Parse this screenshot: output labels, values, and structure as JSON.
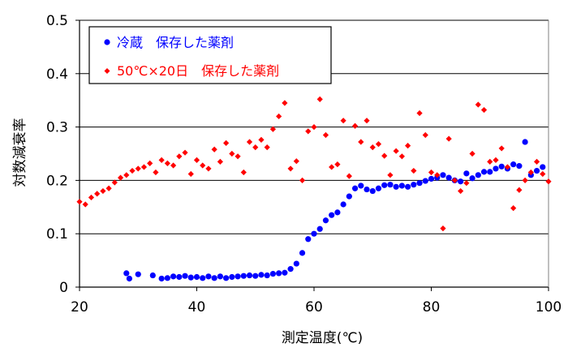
{
  "chart_data": {
    "type": "scatter",
    "xlabel": "測定温度(℃)",
    "ylabel": "対数減衰率",
    "xlim": [
      20,
      100
    ],
    "ylim": [
      0,
      0.5
    ],
    "x_ticks": [
      "20",
      "40",
      "60",
      "80",
      "100"
    ],
    "y_ticks": [
      "0",
      "0.1",
      "0.2",
      "0.3",
      "0.4",
      "0.5"
    ],
    "grid": "horizontal",
    "legend_position": "top-left",
    "series": [
      {
        "name": "冷蔵　保存した薬剤",
        "color": "#0000ff",
        "marker": "circle",
        "points": [
          [
            28.0,
            0.026
          ],
          [
            28.5,
            0.016
          ],
          [
            30.0,
            0.024
          ],
          [
            32.5,
            0.022
          ],
          [
            34.0,
            0.016
          ],
          [
            35.0,
            0.017
          ],
          [
            36.0,
            0.02
          ],
          [
            37.0,
            0.019
          ],
          [
            38.0,
            0.021
          ],
          [
            39.0,
            0.018
          ],
          [
            40.0,
            0.019
          ],
          [
            41.0,
            0.017
          ],
          [
            42.0,
            0.02
          ],
          [
            43.0,
            0.017
          ],
          [
            44.0,
            0.02
          ],
          [
            45.0,
            0.017
          ],
          [
            46.0,
            0.019
          ],
          [
            47.0,
            0.02
          ],
          [
            48.0,
            0.021
          ],
          [
            49.0,
            0.022
          ],
          [
            50.0,
            0.021
          ],
          [
            51.0,
            0.023
          ],
          [
            52.0,
            0.022
          ],
          [
            53.0,
            0.025
          ],
          [
            54.0,
            0.026
          ],
          [
            55.0,
            0.027
          ],
          [
            56.0,
            0.034
          ],
          [
            57.0,
            0.044
          ],
          [
            58.0,
            0.064
          ],
          [
            59.0,
            0.09
          ],
          [
            60.0,
            0.1
          ],
          [
            61.0,
            0.109
          ],
          [
            62.0,
            0.125
          ],
          [
            63.0,
            0.135
          ],
          [
            64.0,
            0.14
          ],
          [
            65.0,
            0.155
          ],
          [
            66.0,
            0.17
          ],
          [
            67.0,
            0.185
          ],
          [
            68.0,
            0.19
          ],
          [
            69.0,
            0.183
          ],
          [
            70.0,
            0.18
          ],
          [
            71.0,
            0.185
          ],
          [
            72.0,
            0.191
          ],
          [
            73.0,
            0.192
          ],
          [
            74.0,
            0.188
          ],
          [
            75.0,
            0.19
          ],
          [
            76.0,
            0.188
          ],
          [
            77.0,
            0.192
          ],
          [
            78.0,
            0.195
          ],
          [
            79.0,
            0.199
          ],
          [
            80.0,
            0.203
          ],
          [
            81.0,
            0.205
          ],
          [
            82.0,
            0.21
          ],
          [
            83.0,
            0.205
          ],
          [
            84.0,
            0.2
          ],
          [
            85.0,
            0.198
          ],
          [
            86.0,
            0.213
          ],
          [
            87.0,
            0.204
          ],
          [
            88.0,
            0.21
          ],
          [
            89.0,
            0.216
          ],
          [
            90.0,
            0.216
          ],
          [
            91.0,
            0.222
          ],
          [
            92.0,
            0.226
          ],
          [
            93.0,
            0.222
          ],
          [
            94.0,
            0.23
          ],
          [
            95.0,
            0.227
          ],
          [
            96.0,
            0.272
          ],
          [
            97.0,
            0.21
          ],
          [
            98.0,
            0.218
          ],
          [
            99.0,
            0.225
          ]
        ]
      },
      {
        "name": "50℃×20日　保存した薬剤",
        "color": "#ff0000",
        "marker": "diamond",
        "points": [
          [
            20.0,
            0.16
          ],
          [
            21.0,
            0.155
          ],
          [
            22.0,
            0.168
          ],
          [
            23.0,
            0.175
          ],
          [
            24.0,
            0.18
          ],
          [
            25.0,
            0.185
          ],
          [
            26.0,
            0.196
          ],
          [
            27.0,
            0.205
          ],
          [
            28.0,
            0.21
          ],
          [
            29.0,
            0.218
          ],
          [
            30.0,
            0.222
          ],
          [
            31.0,
            0.225
          ],
          [
            32.0,
            0.232
          ],
          [
            33.0,
            0.215
          ],
          [
            34.0,
            0.238
          ],
          [
            35.0,
            0.232
          ],
          [
            36.0,
            0.228
          ],
          [
            37.0,
            0.245
          ],
          [
            38.0,
            0.252
          ],
          [
            39.0,
            0.212
          ],
          [
            40.0,
            0.238
          ],
          [
            41.0,
            0.228
          ],
          [
            42.0,
            0.222
          ],
          [
            43.0,
            0.258
          ],
          [
            44.0,
            0.235
          ],
          [
            45.0,
            0.27
          ],
          [
            46.0,
            0.25
          ],
          [
            47.0,
            0.245
          ],
          [
            48.0,
            0.215
          ],
          [
            49.0,
            0.272
          ],
          [
            50.0,
            0.262
          ],
          [
            51.0,
            0.276
          ],
          [
            52.0,
            0.262
          ],
          [
            53.0,
            0.296
          ],
          [
            54.0,
            0.32
          ],
          [
            55.0,
            0.345
          ],
          [
            56.0,
            0.222
          ],
          [
            57.0,
            0.236
          ],
          [
            58.0,
            0.2
          ],
          [
            59.0,
            0.292
          ],
          [
            60.0,
            0.3
          ],
          [
            61.0,
            0.352
          ],
          [
            62.0,
            0.285
          ],
          [
            63.0,
            0.225
          ],
          [
            64.0,
            0.23
          ],
          [
            65.0,
            0.312
          ],
          [
            66.0,
            0.208
          ],
          [
            67.0,
            0.302
          ],
          [
            68.0,
            0.272
          ],
          [
            69.0,
            0.312
          ],
          [
            70.0,
            0.262
          ],
          [
            71.0,
            0.268
          ],
          [
            72.0,
            0.246
          ],
          [
            73.0,
            0.21
          ],
          [
            74.0,
            0.255
          ],
          [
            75.0,
            0.245
          ],
          [
            76.0,
            0.265
          ],
          [
            77.0,
            0.218
          ],
          [
            78.0,
            0.326
          ],
          [
            79.0,
            0.285
          ],
          [
            80.0,
            0.215
          ],
          [
            81.0,
            0.21
          ],
          [
            82.0,
            0.11
          ],
          [
            83.0,
            0.278
          ],
          [
            84.0,
            0.2
          ],
          [
            85.0,
            0.18
          ],
          [
            86.0,
            0.195
          ],
          [
            87.0,
            0.25
          ],
          [
            88.0,
            0.342
          ],
          [
            89.0,
            0.332
          ],
          [
            90.0,
            0.235
          ],
          [
            91.0,
            0.238
          ],
          [
            92.0,
            0.26
          ],
          [
            93.0,
            0.225
          ],
          [
            94.0,
            0.148
          ],
          [
            95.0,
            0.182
          ],
          [
            96.0,
            0.2
          ],
          [
            97.0,
            0.215
          ],
          [
            98.0,
            0.235
          ],
          [
            99.0,
            0.212
          ],
          [
            100.0,
            0.198
          ]
        ]
      }
    ]
  }
}
